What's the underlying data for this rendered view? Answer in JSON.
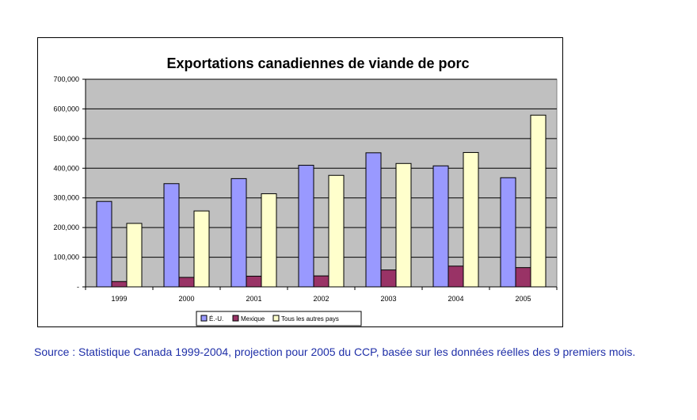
{
  "chart_data": {
    "type": "bar",
    "title": "Exportations canadiennes de viande de porc",
    "xlabel": "",
    "ylabel": "",
    "categories": [
      "1999",
      "2000",
      "2001",
      "2002",
      "2003",
      "2004",
      "2005"
    ],
    "series": [
      {
        "name": "É.-U.",
        "color": "#9999FF",
        "values": [
          288000,
          348000,
          365000,
          410000,
          452000,
          408000,
          368000
        ]
      },
      {
        "name": "Mexique",
        "color": "#993366",
        "values": [
          18000,
          32000,
          36000,
          37000,
          57000,
          70000,
          65000
        ]
      },
      {
        "name": "Tous les autres pays",
        "color": "#FFFFCC",
        "values": [
          214000,
          256000,
          314000,
          376000,
          416000,
          453000,
          579000
        ]
      }
    ],
    "ylim": [
      0,
      700000
    ],
    "yticks": [
      0,
      100000,
      200000,
      300000,
      400000,
      500000,
      600000,
      700000
    ],
    "ytick_labels": [
      "-",
      "100,000",
      "200,000",
      "300,000",
      "400,000",
      "500,000",
      "600,000",
      "700,000"
    ],
    "grid": true,
    "legend_position": "bottom",
    "plot_background": "#C0C0C0"
  },
  "footnote": "Source : Statistique Canada 1999-2004, projection pour 2005 du CCP, basée sur les données réelles des 9 premiers mois."
}
